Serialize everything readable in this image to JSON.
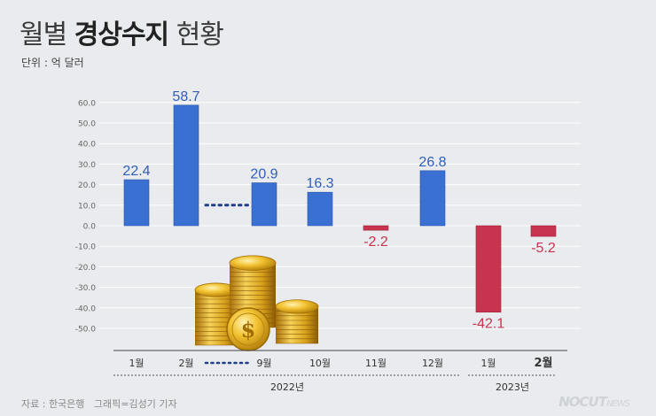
{
  "header": {
    "title_light": "월별",
    "title_bold": "경상수지",
    "title_light2": "현황",
    "unit": "단위 : 억 달러"
  },
  "footer": {
    "source": "자료 : 한국은행",
    "credit": "그래픽=김성기 기자",
    "logo_main": "NOCUT",
    "logo_small": "NEWS"
  },
  "colors": {
    "positive": "#3a70d2",
    "negative": "#c8344f",
    "grid": "#ffffff",
    "text": "#333333"
  },
  "chart_data": {
    "type": "bar",
    "title": "월별 경상수지 현황",
    "ylabel": "단위 : 억 달러",
    "ylim": [
      -55,
      62
    ],
    "yticks": [
      "60.0",
      "50.0",
      "40.0",
      "30.0",
      "20.0",
      "10.0",
      "0.0",
      "-10.0",
      "-20.0",
      "-30.0",
      "-40.0",
      "-50.0"
    ],
    "categories": [
      "1월",
      "2월",
      "9월",
      "10월",
      "11월",
      "12월",
      "1월",
      "2월"
    ],
    "values": [
      22.4,
      58.7,
      20.9,
      16.3,
      -2.2,
      26.8,
      -42.1,
      -5.2
    ],
    "value_labels": [
      "22.4",
      "58.7",
      "20.9",
      "16.3",
      "-2.2",
      "26.8",
      "-42.1",
      "-5.2"
    ],
    "year_groups": [
      {
        "label": "2022년",
        "from": 0,
        "to": 5
      },
      {
        "label": "2023년",
        "from": 6,
        "to": 7
      }
    ],
    "gap_after_index": 1,
    "grid": true
  }
}
